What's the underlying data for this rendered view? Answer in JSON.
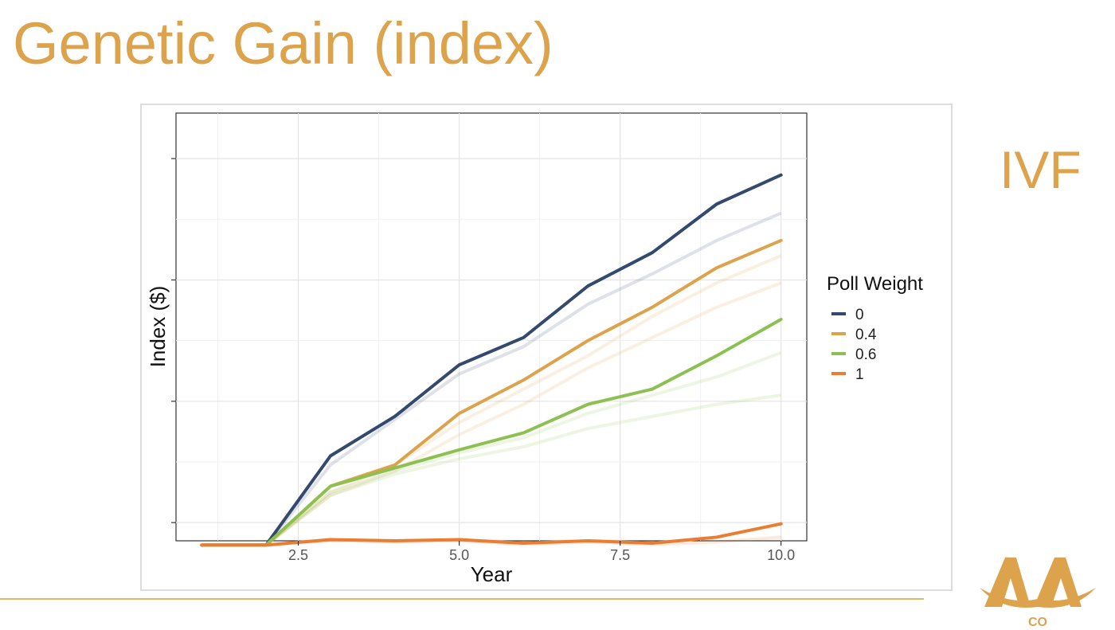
{
  "slide": {
    "title": "Genetic Gain (index)",
    "side_label": "IVF",
    "logo_text": "AA CO"
  },
  "colors": {
    "title": "#dca34c",
    "footer_line": "#e8b66a",
    "poll0": "#34496e",
    "poll04": "#dca34c",
    "poll06": "#8cc152",
    "poll1": "#eb7d33"
  },
  "chart_data": {
    "type": "line",
    "xlabel": "Year",
    "ylabel": "Index ($)",
    "xlim": [
      0.6,
      10.4
    ],
    "ylim": [
      -0.3,
      6.75
    ],
    "x_ticks": [
      2.5,
      5.0,
      7.5,
      10.0
    ],
    "x_tick_labels": [
      "2.5",
      "5.0",
      "7.5",
      "10.0"
    ],
    "y_tick_values": [
      0,
      2,
      4,
      6
    ],
    "y_tick_labels": [
      "",
      "",
      "",
      ""
    ],
    "grid": true,
    "legend_title": "Poll Weight",
    "legend_position": "right",
    "x": [
      1,
      2,
      3,
      4,
      5,
      6,
      7,
      8,
      9,
      10
    ],
    "series": [
      {
        "name": "0",
        "color": "#34496e",
        "values": [
          -0.37,
          -0.37,
          1.1,
          1.75,
          2.6,
          3.05,
          3.9,
          4.45,
          5.25,
          5.73
        ]
      },
      {
        "name": "0.4",
        "color": "#dca34c",
        "values": [
          -0.37,
          -0.37,
          0.6,
          0.95,
          1.8,
          2.35,
          3.0,
          3.55,
          4.2,
          4.65
        ]
      },
      {
        "name": "0.6",
        "color": "#8cc152",
        "values": [
          -0.37,
          -0.37,
          0.6,
          0.9,
          1.2,
          1.48,
          1.95,
          2.2,
          2.75,
          3.35
        ]
      },
      {
        "name": "1",
        "color": "#eb7d33",
        "values": [
          -0.37,
          -0.37,
          -0.28,
          -0.3,
          -0.28,
          -0.34,
          -0.3,
          -0.34,
          -0.24,
          -0.02
        ]
      }
    ],
    "faded_series": [
      {
        "color": "#34496e",
        "values": [
          -0.37,
          -0.37,
          0.95,
          1.7,
          2.45,
          2.9,
          3.6,
          4.1,
          4.65,
          5.1
        ]
      },
      {
        "color": "#dca34c",
        "values": [
          -0.37,
          -0.37,
          0.5,
          0.95,
          1.65,
          2.2,
          2.75,
          3.4,
          3.95,
          4.4
        ]
      },
      {
        "color": "#dca34c",
        "values": [
          -0.37,
          -0.37,
          0.45,
          0.85,
          1.45,
          1.95,
          2.55,
          3.05,
          3.55,
          3.95
        ]
      },
      {
        "color": "#8cc152",
        "values": [
          -0.37,
          -0.37,
          0.5,
          0.85,
          1.15,
          1.4,
          1.8,
          2.1,
          2.4,
          2.8
        ]
      },
      {
        "color": "#8cc152",
        "values": [
          -0.37,
          -0.37,
          0.45,
          0.8,
          1.05,
          1.25,
          1.55,
          1.75,
          1.95,
          2.1
        ]
      },
      {
        "color": "#eb7d33",
        "values": [
          -0.37,
          -0.37,
          -0.3,
          -0.32,
          -0.3,
          -0.36,
          -0.32,
          -0.36,
          -0.32,
          -0.24
        ]
      }
    ]
  }
}
